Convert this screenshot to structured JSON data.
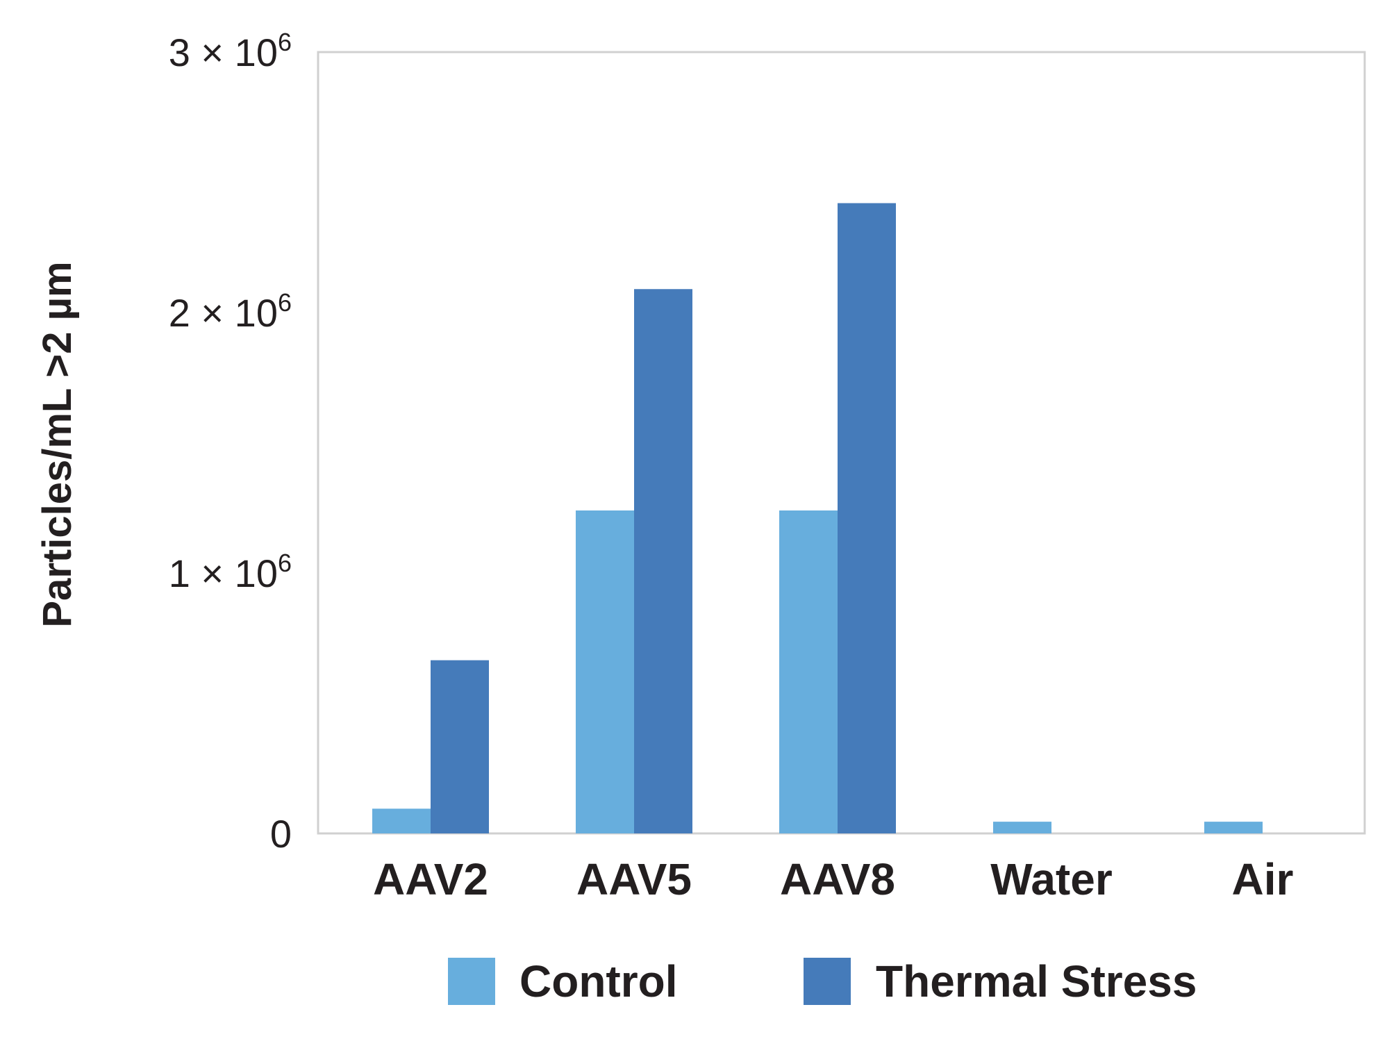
{
  "chart_data": {
    "type": "bar",
    "title": "",
    "xlabel": "",
    "ylabel": "Particles/mL >2 µm",
    "categories": [
      "AAV2",
      "AAV5",
      "AAV8",
      "Water",
      "Air"
    ],
    "series": [
      {
        "name": "Control",
        "color": "#67aedd",
        "values": [
          95000,
          1240000,
          1240000,
          45000,
          45000
        ]
      },
      {
        "name": "Thermal Stress",
        "color": "#457bba",
        "values": [
          665000,
          2090000,
          2420000,
          0,
          0
        ]
      }
    ],
    "ylim": [
      0,
      3000000
    ],
    "yticks": [
      {
        "value": 0,
        "mantissa": "0",
        "times": "",
        "base": "",
        "exp": ""
      },
      {
        "value": 1000000,
        "mantissa": "1",
        "times": "×",
        "base": "10",
        "exp": "6"
      },
      {
        "value": 2000000,
        "mantissa": "2",
        "times": "×",
        "base": "10",
        "exp": "6"
      },
      {
        "value": 3000000,
        "mantissa": "3",
        "times": "×",
        "base": "10",
        "exp": "6"
      }
    ],
    "grid": false,
    "legend_position": "bottom",
    "frame_color": "#d0d0d0"
  }
}
